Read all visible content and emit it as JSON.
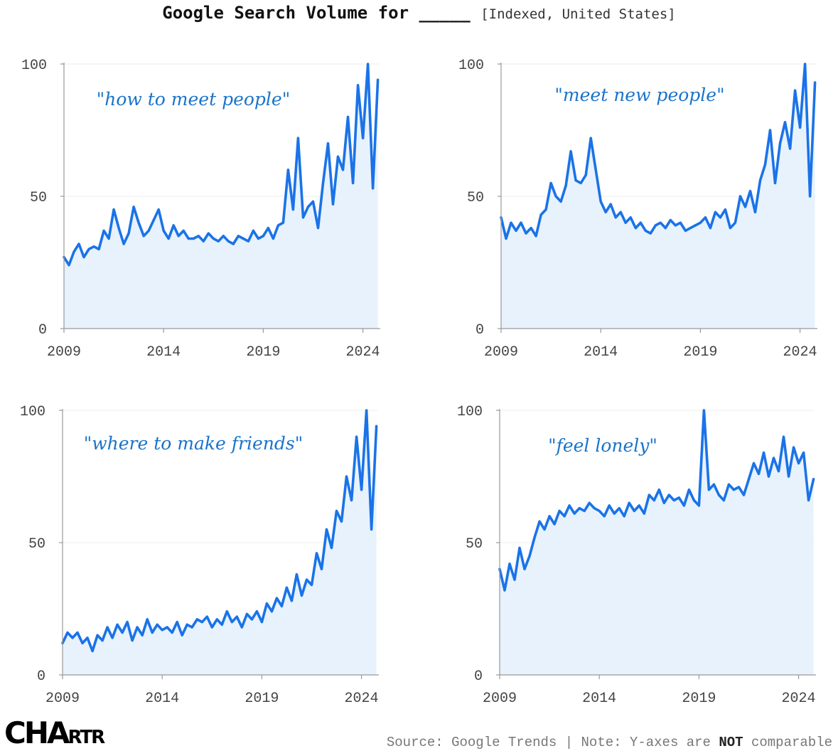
{
  "header": {
    "title_main": "Google Search Volume for _____",
    "title_sub": "[Indexed, United States]"
  },
  "footer": {
    "source": "Source: Google Trends | Note: Y-axes are ",
    "not": "NOT",
    "comparable": " comparable"
  },
  "logo": {
    "big": "CHA",
    "small": "RTR"
  },
  "colors": {
    "line": "#1a73e8",
    "fill": "#e8f2fd",
    "label": "#1a73c9",
    "axis": "#999999"
  },
  "chart_data": [
    {
      "type": "area",
      "label": "\"how to meet people\"",
      "ylim": [
        0,
        100
      ],
      "yticks": [
        0,
        50,
        100
      ],
      "xlim": [
        2009,
        2024.8
      ],
      "xticks": [
        2009,
        2014,
        2019,
        2024
      ],
      "x": [
        2009.0,
        2009.25,
        2009.5,
        2009.75,
        2010.0,
        2010.25,
        2010.5,
        2010.75,
        2011.0,
        2011.25,
        2011.5,
        2011.75,
        2012.0,
        2012.25,
        2012.5,
        2012.75,
        2013.0,
        2013.25,
        2013.5,
        2013.75,
        2014.0,
        2014.25,
        2014.5,
        2014.75,
        2015.0,
        2015.25,
        2015.5,
        2015.75,
        2016.0,
        2016.25,
        2016.5,
        2016.75,
        2017.0,
        2017.25,
        2017.5,
        2017.75,
        2018.0,
        2018.25,
        2018.5,
        2018.75,
        2019.0,
        2019.25,
        2019.5,
        2019.75,
        2020.0,
        2020.25,
        2020.5,
        2020.75,
        2021.0,
        2021.25,
        2021.5,
        2021.75,
        2022.0,
        2022.25,
        2022.5,
        2022.75,
        2023.0,
        2023.25,
        2023.5,
        2023.75,
        2024.0,
        2024.25,
        2024.5,
        2024.75
      ],
      "y": [
        27,
        24,
        29,
        32,
        27,
        30,
        31,
        30,
        37,
        34,
        45,
        38,
        32,
        36,
        46,
        40,
        35,
        37,
        41,
        45,
        37,
        34,
        39,
        35,
        37,
        34,
        34,
        35,
        33,
        36,
        34,
        33,
        35,
        33,
        32,
        35,
        34,
        33,
        37,
        34,
        35,
        38,
        34,
        39,
        40,
        60,
        45,
        72,
        42,
        46,
        48,
        38,
        55,
        70,
        47,
        65,
        60,
        80,
        55,
        92,
        72,
        100,
        53,
        94
      ]
    },
    {
      "type": "area",
      "label": "\"meet new people\"",
      "ylim": [
        0,
        100
      ],
      "yticks": [
        0,
        50,
        100
      ],
      "xlim": [
        2009,
        2024.8
      ],
      "xticks": [
        2009,
        2014,
        2019,
        2024
      ],
      "x": [
        2009.0,
        2009.25,
        2009.5,
        2009.75,
        2010.0,
        2010.25,
        2010.5,
        2010.75,
        2011.0,
        2011.25,
        2011.5,
        2011.75,
        2012.0,
        2012.25,
        2012.5,
        2012.75,
        2013.0,
        2013.25,
        2013.5,
        2013.75,
        2014.0,
        2014.25,
        2014.5,
        2014.75,
        2015.0,
        2015.25,
        2015.5,
        2015.75,
        2016.0,
        2016.25,
        2016.5,
        2016.75,
        2017.0,
        2017.25,
        2017.5,
        2017.75,
        2018.0,
        2018.25,
        2018.5,
        2018.75,
        2019.0,
        2019.25,
        2019.5,
        2019.75,
        2020.0,
        2020.25,
        2020.5,
        2020.75,
        2021.0,
        2021.25,
        2021.5,
        2021.75,
        2022.0,
        2022.25,
        2022.5,
        2022.75,
        2023.0,
        2023.25,
        2023.5,
        2023.75,
        2024.0,
        2024.25,
        2024.5,
        2024.75
      ],
      "y": [
        42,
        34,
        40,
        37,
        40,
        36,
        38,
        35,
        43,
        45,
        55,
        50,
        48,
        54,
        67,
        56,
        55,
        58,
        72,
        60,
        48,
        44,
        47,
        42,
        44,
        40,
        42,
        38,
        40,
        37,
        36,
        39,
        40,
        38,
        41,
        39,
        40,
        37,
        38,
        39,
        40,
        42,
        38,
        44,
        42,
        45,
        38,
        40,
        50,
        46,
        52,
        44,
        56,
        62,
        75,
        55,
        70,
        78,
        68,
        90,
        76,
        100,
        50,
        93
      ]
    },
    {
      "type": "area",
      "label": "\"where to make friends\"",
      "ylim": [
        0,
        100
      ],
      "yticks": [
        0,
        50,
        100
      ],
      "xlim": [
        2009,
        2024.8
      ],
      "xticks": [
        2009,
        2014,
        2019,
        2024
      ],
      "x": [
        2009.0,
        2009.25,
        2009.5,
        2009.75,
        2010.0,
        2010.25,
        2010.5,
        2010.75,
        2011.0,
        2011.25,
        2011.5,
        2011.75,
        2012.0,
        2012.25,
        2012.5,
        2012.75,
        2013.0,
        2013.25,
        2013.5,
        2013.75,
        2014.0,
        2014.25,
        2014.5,
        2014.75,
        2015.0,
        2015.25,
        2015.5,
        2015.75,
        2016.0,
        2016.25,
        2016.5,
        2016.75,
        2017.0,
        2017.25,
        2017.5,
        2017.75,
        2018.0,
        2018.25,
        2018.5,
        2018.75,
        2019.0,
        2019.25,
        2019.5,
        2019.75,
        2020.0,
        2020.25,
        2020.5,
        2020.75,
        2021.0,
        2021.25,
        2021.5,
        2021.75,
        2022.0,
        2022.25,
        2022.5,
        2022.75,
        2023.0,
        2023.25,
        2023.5,
        2023.75,
        2024.0,
        2024.25,
        2024.5,
        2024.75
      ],
      "y": [
        12,
        16,
        14,
        16,
        12,
        14,
        9,
        15,
        13,
        18,
        14,
        19,
        16,
        20,
        13,
        18,
        15,
        21,
        16,
        19,
        17,
        18,
        16,
        20,
        15,
        19,
        18,
        21,
        20,
        22,
        18,
        21,
        19,
        24,
        20,
        22,
        18,
        23,
        21,
        24,
        20,
        27,
        24,
        29,
        26,
        33,
        28,
        38,
        30,
        36,
        34,
        46,
        40,
        55,
        48,
        62,
        58,
        75,
        66,
        90,
        70,
        100,
        55,
        94
      ]
    },
    {
      "type": "area",
      "label": "\"feel lonely\"",
      "ylim": [
        0,
        100
      ],
      "yticks": [
        0,
        50,
        100
      ],
      "xlim": [
        2009,
        2024.8
      ],
      "xticks": [
        2009,
        2014,
        2019,
        2024
      ],
      "x": [
        2009.0,
        2009.25,
        2009.5,
        2009.75,
        2010.0,
        2010.25,
        2010.5,
        2010.75,
        2011.0,
        2011.25,
        2011.5,
        2011.75,
        2012.0,
        2012.25,
        2012.5,
        2012.75,
        2013.0,
        2013.25,
        2013.5,
        2013.75,
        2014.0,
        2014.25,
        2014.5,
        2014.75,
        2015.0,
        2015.25,
        2015.5,
        2015.75,
        2016.0,
        2016.25,
        2016.5,
        2016.75,
        2017.0,
        2017.25,
        2017.5,
        2017.75,
        2018.0,
        2018.25,
        2018.5,
        2018.75,
        2019.0,
        2019.25,
        2019.5,
        2019.75,
        2020.0,
        2020.25,
        2020.5,
        2020.75,
        2021.0,
        2021.25,
        2021.5,
        2021.75,
        2022.0,
        2022.25,
        2022.5,
        2022.75,
        2023.0,
        2023.25,
        2023.5,
        2023.75,
        2024.0,
        2024.25,
        2024.5,
        2024.75
      ],
      "y": [
        40,
        32,
        42,
        36,
        48,
        40,
        45,
        52,
        58,
        55,
        60,
        57,
        62,
        60,
        64,
        61,
        63,
        62,
        65,
        63,
        62,
        60,
        64,
        61,
        63,
        60,
        65,
        62,
        64,
        61,
        68,
        66,
        70,
        65,
        68,
        66,
        67,
        64,
        70,
        66,
        64,
        100,
        70,
        72,
        68,
        66,
        72,
        70,
        71,
        68,
        74,
        80,
        76,
        84,
        75,
        82,
        77,
        90,
        75,
        86,
        80,
        84,
        66,
        74
      ]
    }
  ]
}
